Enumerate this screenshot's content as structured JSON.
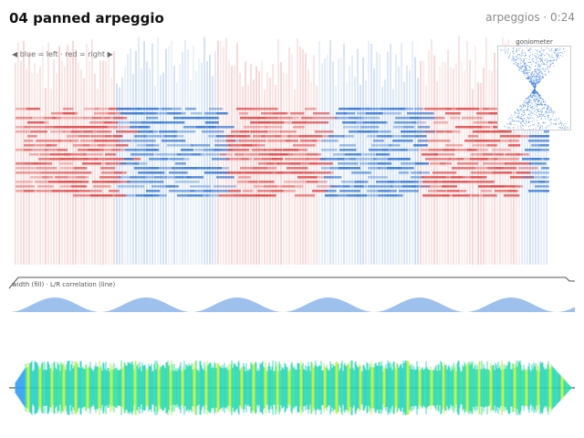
{
  "header": {
    "title": "04 panned arpeggio",
    "meta": "arpeggios · 0:24"
  },
  "legend": "◀ blue = left · red = right ▶",
  "goniometer": {
    "label": "goniometer"
  },
  "width_panel": {
    "label": "width (fill) · L/R correlation (line)"
  },
  "colors": {
    "left": "#3a7bd5",
    "right": "#e05050",
    "width_fill": "#9dc0ec",
    "wave_low": "#2f9df2",
    "wave_high": "#b6f23a"
  }
}
